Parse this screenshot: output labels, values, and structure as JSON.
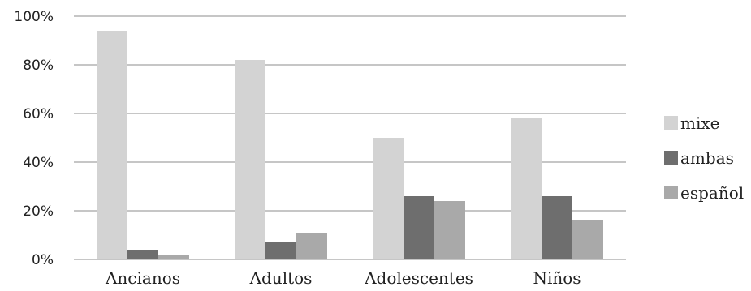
{
  "chart_data": {
    "type": "bar",
    "categories": [
      "Ancianos",
      "Adultos",
      "Adolescentes",
      "Niños"
    ],
    "series": [
      {
        "name": "mixe",
        "values": [
          94,
          82,
          50,
          58
        ],
        "color": "#d3d3d3"
      },
      {
        "name": "ambas",
        "values": [
          4,
          7,
          26,
          26
        ],
        "color": "#6e6e6e"
      },
      {
        "name": "español",
        "values": [
          2,
          11,
          24,
          16
        ],
        "color": "#a9a9a9"
      }
    ],
    "yticks": [
      "0%",
      "20%",
      "40%",
      "60%",
      "80%",
      "100%"
    ],
    "ylim": [
      0,
      100
    ],
    "grid": true,
    "legend_position": "right"
  }
}
